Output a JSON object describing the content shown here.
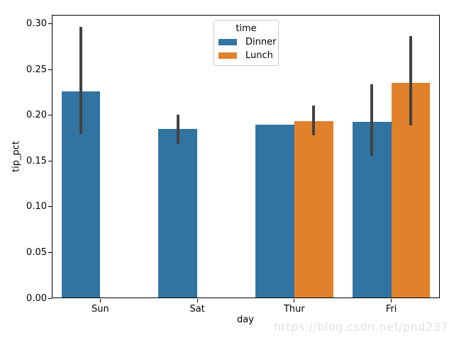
{
  "watermark": "https://blog.csdn.net/pnd237",
  "colors": {
    "dinner": "#3274a1",
    "lunch": "#e1812c",
    "errorbar": "#424242",
    "spine": "#000000",
    "legend_border": "#cccccc",
    "watermark": "#e2e2e2",
    "background": "#ffffff"
  },
  "chart_data": {
    "type": "bar",
    "title": "",
    "xlabel": "day",
    "ylabel": "tip_pct",
    "categories": [
      "Sun",
      "Sat",
      "Thur",
      "Fri"
    ],
    "ylim": [
      0,
      0.31
    ],
    "yticks": [
      0.0,
      0.05,
      0.1,
      0.15,
      0.2,
      0.25,
      0.3
    ],
    "grid": false,
    "legend": {
      "title": "time",
      "position": "upper center",
      "entries": [
        "Dinner",
        "Lunch"
      ]
    },
    "series": [
      {
        "name": "Dinner",
        "color": "#3274a1",
        "values": [
          0.2266,
          0.1849,
          0.1901,
          0.1926
        ],
        "ci_low": [
          0.18,
          0.169,
          null,
          0.156
        ],
        "ci_high": [
          0.297,
          0.201,
          null,
          0.234
        ]
      },
      {
        "name": "Lunch",
        "color": "#e1812c",
        "values": [
          null,
          null,
          0.1939,
          0.2359
        ],
        "ci_low": [
          null,
          null,
          0.178,
          0.189
        ],
        "ci_high": [
          null,
          null,
          0.211,
          0.287
        ]
      }
    ]
  }
}
